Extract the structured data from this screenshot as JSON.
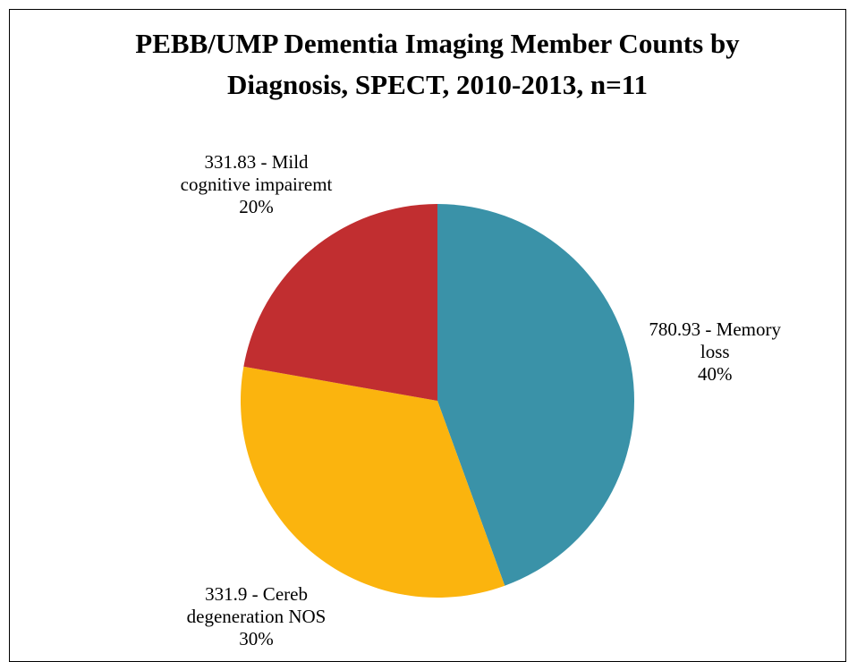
{
  "chart_data": {
    "type": "pie",
    "title": "PEBB/UMP Dementia Imaging Member Counts by Diagnosis, SPECT, 2010-2013, n=11",
    "categories": [
      "780.93 - Memory loss",
      "331.9 - Cereb degeneration NOS",
      "331.83 - Mild cognitive impairemt"
    ],
    "values": [
      40,
      30,
      20
    ],
    "value_labels": [
      "40%",
      "30%",
      "20%"
    ],
    "colors": [
      "#3a92a8",
      "#fbb40e",
      "#c12e30"
    ]
  }
}
